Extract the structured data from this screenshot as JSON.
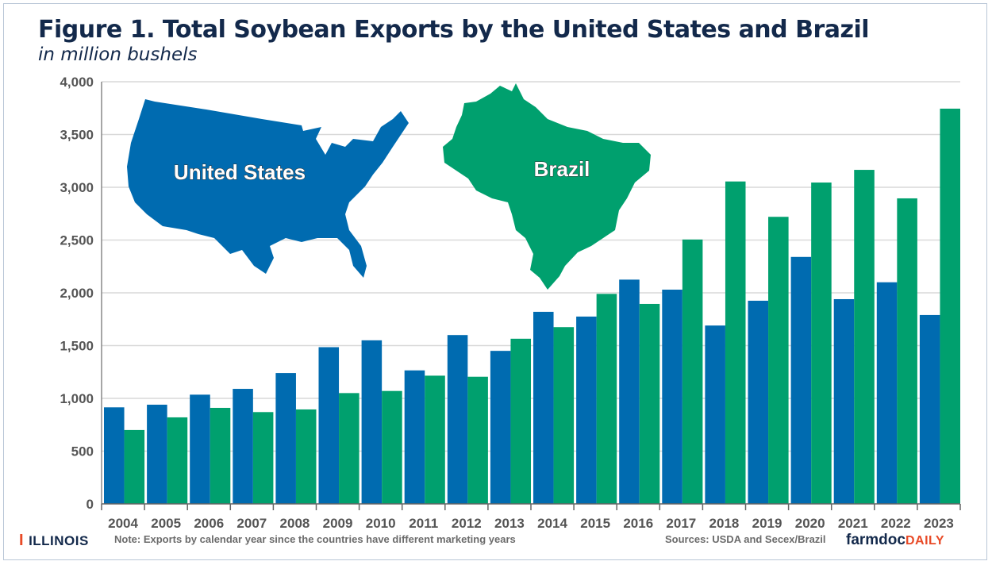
{
  "title": "Figure 1. Total Soybean Exports by the United States and Brazil",
  "subtitle": "in million bushels",
  "colors": {
    "us": "#006BB0",
    "brazil": "#00A06E",
    "title": "#13294B"
  },
  "chart_data": {
    "type": "bar",
    "title": "Figure 1. Total Soybean Exports by the United States and Brazil",
    "subtitle": "in million bushels",
    "xlabel": "",
    "ylabel": "",
    "ylim": [
      0,
      4000
    ],
    "yticks": [
      "0",
      "500",
      "1,000",
      "1,500",
      "2,000",
      "2,500",
      "3,000",
      "3,500",
      "4,000"
    ],
    "grid": true,
    "categories": [
      "2004",
      "2005",
      "2006",
      "2007",
      "2008",
      "2009",
      "2010",
      "2011",
      "2012",
      "2013",
      "2014",
      "2015",
      "2016",
      "2017",
      "2018",
      "2019",
      "2020",
      "2021",
      "2022",
      "2023"
    ],
    "series": [
      {
        "name": "United States",
        "color": "#006BB0",
        "values": [
          915,
          940,
          1035,
          1090,
          1240,
          1485,
          1550,
          1265,
          1600,
          1450,
          1820,
          1775,
          2125,
          2030,
          1690,
          1925,
          2340,
          1940,
          2100,
          1790
        ]
      },
      {
        "name": "Brazil",
        "color": "#00A06E",
        "values": [
          700,
          820,
          910,
          870,
          895,
          1050,
          1070,
          1215,
          1205,
          1565,
          1675,
          1990,
          1895,
          2505,
          3055,
          2720,
          3045,
          3165,
          2895,
          3745
        ]
      }
    ]
  },
  "map_labels": {
    "us": "United States",
    "brazil": "Brazil"
  },
  "footer": {
    "logo_left": "ILLINOIS",
    "note": "Note: Exports by calendar  year since the countries have different marketing years",
    "sources": "Sources: USDA and Secex/Brazil",
    "logo_right_a": "farmdoc",
    "logo_right_b": "DAILY"
  }
}
